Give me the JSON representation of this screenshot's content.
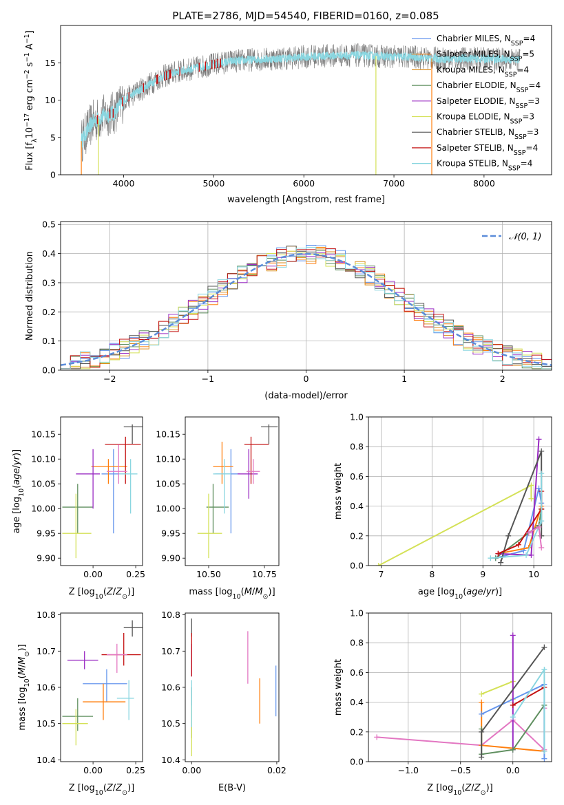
{
  "title": "PLATE=2786, MJD=54540, FIBERID=0160, z=0.085",
  "colors": {
    "Chabrier MILES": "#6495ed",
    "Salpeter MILES": "#ff7f0e",
    "Kroupa MILES": "#d98a1a",
    "Chabrier ELODIE": "#5f8f5f",
    "Salpeter ELODIE": "#9a2bc3",
    "Kroupa ELODIE": "#d4e157",
    "Chabrier STELIB": "#555555",
    "Salpeter STELIB": "#c41010",
    "Kroupa STELIB": "#8ad6e0",
    "extra": "#e377c2",
    "data": "#7f7f7f",
    "normal": "#5b8cd9"
  },
  "chart_data": [
    {
      "id": "spectrum",
      "type": "line",
      "title": "PLATE=2786, MJD=54540, FIBERID=0160, z=0.085",
      "xlabel": "wavelength [Angstrom, rest frame]",
      "ylabel": "Flux [f_λ10^-17 erg cm^-2 s^-1 A^-1]",
      "xlim": [
        3300,
        8750
      ],
      "ylim": [
        0,
        20
      ],
      "xticks": [
        4000,
        5000,
        6000,
        7000,
        8000
      ],
      "yticks": [
        0,
        5,
        10,
        15
      ],
      "grid": false,
      "legend_position": "top-right",
      "series": [
        {
          "name": "Chabrier MILES",
          "nssp": "4"
        },
        {
          "name": "Salpeter MILES",
          "nssp": "5"
        },
        {
          "name": "Kroupa MILES",
          "nssp": "4"
        },
        {
          "name": "Chabrier ELODIE",
          "nssp": "4"
        },
        {
          "name": "Salpeter ELODIE",
          "nssp": "3"
        },
        {
          "name": "Kroupa ELODIE",
          "nssp": "3"
        },
        {
          "name": "Chabrier STELIB",
          "nssp": "3"
        },
        {
          "name": "Salpeter STELIB",
          "nssp": "4"
        },
        {
          "name": "Kroupa STELIB",
          "nssp": "4"
        }
      ],
      "continuum": {
        "x": [
          3530,
          3650,
          3800,
          3900,
          4000,
          4200,
          4400,
          4600,
          4800,
          5000,
          5200,
          5400,
          5600,
          5800,
          6000,
          6200,
          6400,
          6600,
          6800,
          7000,
          7200,
          7400,
          7600,
          7800,
          8000,
          8200,
          8400
        ],
        "y": [
          4.5,
          7.0,
          8.0,
          8.3,
          10.0,
          11.5,
          13.0,
          13.8,
          14.3,
          14.8,
          15.2,
          15.4,
          15.5,
          15.6,
          15.8,
          15.9,
          16.0,
          16.0,
          15.9,
          15.8,
          15.8,
          15.6,
          15.5,
          15.6,
          15.5,
          15.5,
          15.4
        ]
      }
    },
    {
      "id": "residuals",
      "type": "bar",
      "xlabel": "(data-model)/error",
      "ylabel": "Normed distribution",
      "xlim": [
        -2.5,
        2.5
      ],
      "ylim": [
        0,
        0.51
      ],
      "xticks": [
        -2,
        -1,
        0,
        1,
        2
      ],
      "yticks": [
        0.0,
        0.1,
        0.2,
        0.3,
        0.4,
        0.5
      ],
      "grid": true,
      "legend": [
        "𝒩(0, 1)"
      ],
      "legend_position": "top-right",
      "bin_width": 0.1
    },
    {
      "id": "age-vs-Z",
      "type": "scatter",
      "xlabel": "Z [log10(Z/Z☉)]",
      "ylabel": "age  [log10(age/yr)]",
      "xlim": [
        -0.19,
        0.29
      ],
      "ylim": [
        9.885,
        10.185
      ],
      "xticks": [
        0.0,
        0.25
      ],
      "yticks": [
        9.9,
        9.95,
        10.0,
        10.05,
        10.1,
        10.15
      ],
      "points": [
        {
          "s": "Chabrier MILES",
          "x": 0.12,
          "y": 10.07,
          "xl": 0.05,
          "xh": 0.2,
          "yl": 9.95,
          "yh": 10.12
        },
        {
          "s": "Salpeter MILES",
          "x": 0.09,
          "y": 10.085,
          "xl": -0.01,
          "xh": 0.2,
          "yl": 10.05,
          "yh": 10.1
        },
        {
          "s": "Chabrier ELODIE",
          "x": -0.09,
          "y": 10.003,
          "xl": -0.18,
          "xh": 0.0,
          "yl": 9.95,
          "yh": 10.05
        },
        {
          "s": "Salpeter ELODIE",
          "x": 0.0,
          "y": 10.07,
          "xl": -0.1,
          "xh": 0.04,
          "yl": 10.0,
          "yh": 10.12
        },
        {
          "s": "Kroupa ELODIE",
          "x": -0.1,
          "y": 9.95,
          "xl": -0.18,
          "xh": -0.01,
          "yl": 9.9,
          "yh": 10.03
        },
        {
          "s": "Chabrier STELIB",
          "x": 0.23,
          "y": 10.165,
          "xl": 0.18,
          "xh": 0.29,
          "yl": 10.13,
          "yh": 10.17
        },
        {
          "s": "Salpeter STELIB",
          "x": 0.19,
          "y": 10.13,
          "xl": 0.07,
          "xh": 0.28,
          "yl": 10.05,
          "yh": 10.145
        },
        {
          "s": "Kroupa STELIB",
          "x": 0.22,
          "y": 10.07,
          "xl": 0.15,
          "xh": 0.26,
          "yl": 9.99,
          "yh": 10.1
        },
        {
          "s": "extra",
          "x": 0.15,
          "y": 10.075,
          "xl": 0.08,
          "xh": 0.2,
          "yl": 10.05,
          "yh": 10.13
        }
      ]
    },
    {
      "id": "age-vs-mass",
      "type": "scatter",
      "xlabel": "mass [log10(M/M☉)]",
      "ylabel": "",
      "xlim": [
        10.395,
        10.815
      ],
      "ylim": [
        9.885,
        10.185
      ],
      "xticks": [
        10.5,
        10.75
      ],
      "yticks": [
        9.9,
        9.95,
        10.0,
        10.05,
        10.1,
        10.15
      ],
      "points": [
        {
          "s": "Chabrier MILES",
          "x": 10.6,
          "y": 10.07,
          "xl": 10.53,
          "xh": 10.64,
          "yl": 9.95,
          "yh": 10.12
        },
        {
          "s": "Salpeter MILES",
          "x": 10.56,
          "y": 10.085,
          "xl": 10.52,
          "xh": 10.61,
          "yl": 10.05,
          "yh": 10.135
        },
        {
          "s": "Chabrier ELODIE",
          "x": 10.52,
          "y": 10.003,
          "xl": 10.49,
          "xh": 10.59,
          "yl": 9.95,
          "yh": 10.05
        },
        {
          "s": "Salpeter ELODIE",
          "x": 10.68,
          "y": 10.07,
          "xl": 10.63,
          "xh": 10.72,
          "yl": 10.02,
          "yh": 10.12
        },
        {
          "s": "Kroupa ELODIE",
          "x": 10.5,
          "y": 9.95,
          "xl": 10.45,
          "xh": 10.56,
          "yl": 9.9,
          "yh": 10.03
        },
        {
          "s": "Chabrier STELIB",
          "x": 10.77,
          "y": 10.165,
          "xl": 10.735,
          "xh": 10.81,
          "yl": 10.13,
          "yh": 10.17
        },
        {
          "s": "Salpeter STELIB",
          "x": 10.69,
          "y": 10.13,
          "xl": 10.66,
          "xh": 10.77,
          "yl": 10.05,
          "yh": 10.145
        },
        {
          "s": "Kroupa STELIB",
          "x": 10.57,
          "y": 10.07,
          "xl": 10.52,
          "xh": 10.6,
          "yl": 9.99,
          "yh": 10.1
        },
        {
          "s": "extra",
          "x": 10.7,
          "y": 10.075,
          "xl": 10.67,
          "xh": 10.73,
          "yl": 10.05,
          "yh": 10.1
        }
      ]
    },
    {
      "id": "weight-vs-age",
      "type": "line",
      "xlabel": "age  [log10(age/yr)]",
      "ylabel": "mass weight",
      "xlim": [
        6.75,
        10.35
      ],
      "ylim": [
        0,
        1.0
      ],
      "xticks": [
        7,
        8,
        9,
        10
      ],
      "yticks": [
        0.0,
        0.2,
        0.4,
        0.6,
        0.8,
        1.0
      ],
      "grid": true,
      "series": [
        {
          "name": "Kroupa ELODIE",
          "x": [
            6.95,
            9.95,
            9.95
          ],
          "y": [
            0.0,
            0.54,
            0.45
          ]
        },
        {
          "name": "Chabrier MILES",
          "x": [
            9.25,
            9.8,
            10.1,
            10.15
          ],
          "y": [
            0.05,
            0.1,
            0.52,
            0.42
          ]
        },
        {
          "name": "Salpeter MILES",
          "x": [
            9.3,
            9.9,
            10.15
          ],
          "y": [
            0.08,
            0.12,
            0.4
          ]
        },
        {
          "name": "Chabrier ELODIE",
          "x": [
            9.25,
            9.9,
            10.1,
            10.15
          ],
          "y": [
            0.05,
            0.22,
            0.27,
            0.38
          ]
        },
        {
          "name": "Salpeter ELODIE",
          "x": [
            9.3,
            9.95,
            10.1
          ],
          "y": [
            0.08,
            0.07,
            0.85
          ]
        },
        {
          "name": "Chabrier STELIB",
          "x": [
            9.35,
            9.5,
            10.15,
            10.15
          ],
          "y": [
            0.02,
            0.2,
            0.77,
            0.2
          ]
        },
        {
          "name": "Salpeter STELIB",
          "x": [
            9.3,
            9.7,
            10.15,
            10.15
          ],
          "y": [
            0.08,
            0.14,
            0.38,
            0.5
          ]
        },
        {
          "name": "Kroupa STELIB",
          "x": [
            9.15,
            9.85,
            10.15,
            10.15
          ],
          "y": [
            0.05,
            0.07,
            0.3,
            0.62
          ]
        },
        {
          "name": "extra",
          "x": [
            9.9,
            10.1,
            10.15
          ],
          "y": [
            0.22,
            0.26,
            0.12
          ]
        }
      ]
    },
    {
      "id": "mass-vs-Z",
      "type": "scatter",
      "xlabel": "Z [log10(Z/Z☉)]",
      "ylabel": "mass [log10(M/M☉)]",
      "xlim": [
        -0.19,
        0.29
      ],
      "ylim": [
        10.395,
        10.805
      ],
      "xticks": [
        0.0,
        0.25
      ],
      "yticks": [
        10.4,
        10.5,
        10.6,
        10.7,
        10.8
      ],
      "points": [
        {
          "s": "Chabrier MILES",
          "x": 0.08,
          "y": 10.61,
          "xl": -0.06,
          "xh": 0.2,
          "yl": 10.56,
          "yh": 10.65
        },
        {
          "s": "Salpeter MILES",
          "x": 0.06,
          "y": 10.56,
          "xl": -0.06,
          "xh": 0.19,
          "yl": 10.51,
          "yh": 10.61
        },
        {
          "s": "Chabrier ELODIE",
          "x": -0.09,
          "y": 10.52,
          "xl": -0.18,
          "xh": 0.0,
          "yl": 10.48,
          "yh": 10.57
        },
        {
          "s": "Salpeter ELODIE",
          "x": -0.05,
          "y": 10.675,
          "xl": -0.15,
          "xh": 0.03,
          "yl": 10.65,
          "yh": 10.7
        },
        {
          "s": "Kroupa ELODIE",
          "x": -0.1,
          "y": 10.5,
          "xl": -0.18,
          "xh": -0.03,
          "yl": 10.44,
          "yh": 10.54
        },
        {
          "s": "Chabrier STELIB",
          "x": 0.23,
          "y": 10.765,
          "xl": 0.18,
          "xh": 0.29,
          "yl": 10.74,
          "yh": 10.785
        },
        {
          "s": "Salpeter STELIB",
          "x": 0.18,
          "y": 10.69,
          "xl": 0.05,
          "xh": 0.28,
          "yl": 10.66,
          "yh": 10.75
        },
        {
          "s": "Kroupa STELIB",
          "x": 0.21,
          "y": 10.57,
          "xl": 0.14,
          "xh": 0.24,
          "yl": 10.51,
          "yh": 10.62
        },
        {
          "s": "extra",
          "x": 0.14,
          "y": 10.69,
          "xl": 0.08,
          "xh": 0.2,
          "yl": 10.64,
          "yh": 10.72
        }
      ]
    },
    {
      "id": "mass-vs-ebv",
      "type": "scatter",
      "xlabel": "E(B-V)",
      "ylabel": "",
      "xlim": [
        -0.0015,
        0.0205
      ],
      "ylim": [
        10.395,
        10.805
      ],
      "xticks": [
        0.0,
        0.02
      ],
      "yticks": [
        10.4,
        10.5,
        10.6,
        10.7,
        10.8
      ],
      "points": [
        {
          "s": "Chabrier MILES",
          "x": 0.0198,
          "y": 10.6,
          "yl": 10.52,
          "yh": 10.66
        },
        {
          "s": "Salpeter MILES",
          "x": 0.016,
          "y": 10.56,
          "yl": 10.5,
          "yh": 10.625
        },
        {
          "s": "Chabrier ELODIE",
          "x": 0.0,
          "y": 10.52,
          "yl": 10.46,
          "yh": 10.6
        },
        {
          "s": "Salpeter ELODIE",
          "x": 0.0,
          "y": 10.675,
          "yl": 10.63,
          "yh": 10.72
        },
        {
          "s": "Kroupa ELODIE",
          "x": 0.0,
          "y": 10.5,
          "yl": 10.41,
          "yh": 10.55
        },
        {
          "s": "Chabrier STELIB",
          "x": 0.0,
          "y": 10.765,
          "yl": 10.74,
          "yh": 10.79
        },
        {
          "s": "Salpeter STELIB",
          "x": 0.0,
          "y": 10.69,
          "yl": 10.63,
          "yh": 10.75
        },
        {
          "s": "Kroupa STELIB",
          "x": 0.0,
          "y": 10.56,
          "yl": 10.49,
          "yh": 10.62
        },
        {
          "s": "extra",
          "x": 0.0132,
          "y": 10.68,
          "yl": 10.61,
          "yh": 10.755
        }
      ]
    },
    {
      "id": "weight-vs-Z",
      "type": "line",
      "xlabel": "Z [log10(Z/Z☉)]",
      "ylabel": "mass weight",
      "xlim": [
        -1.38,
        0.37
      ],
      "ylim": [
        0,
        1.0
      ],
      "xticks": [
        -1.0,
        -0.5,
        0.0
      ],
      "yticks": [
        0.0,
        0.2,
        0.4,
        0.6,
        0.8,
        1.0
      ],
      "grid": true,
      "series": [
        {
          "name": "extra",
          "x": [
            -1.3,
            -0.3,
            0.0,
            0.3,
            0.3
          ],
          "y": [
            0.165,
            0.11,
            0.28,
            0.08,
            0.36
          ]
        },
        {
          "name": "Salpeter MILES",
          "x": [
            -0.3,
            -0.3,
            0.3
          ],
          "y": [
            0.4,
            0.11,
            0.07
          ]
        },
        {
          "name": "Kroupa ELODIE",
          "x": [
            -0.3,
            0.0,
            0.0
          ],
          "y": [
            0.455,
            0.54,
            0.42
          ]
        },
        {
          "name": "Chabrier MILES",
          "x": [
            -0.3,
            0.3,
            0.3
          ],
          "y": [
            0.32,
            0.52,
            0.02
          ]
        },
        {
          "name": "Salpeter ELODIE",
          "x": [
            0.0,
            0.0
          ],
          "y": [
            0.85,
            0.08
          ]
        },
        {
          "name": "Chabrier ELODIE",
          "x": [
            -0.3,
            -0.3,
            0.0,
            0.3
          ],
          "y": [
            0.22,
            0.05,
            0.08,
            0.38
          ]
        },
        {
          "name": "Chabrier STELIB",
          "x": [
            -0.3,
            -0.3,
            0.3
          ],
          "y": [
            0.03,
            0.2,
            0.77
          ]
        },
        {
          "name": "Salpeter STELIB",
          "x": [
            0.0,
            0.3
          ],
          "y": [
            0.38,
            0.5
          ]
        },
        {
          "name": "Kroupa STELIB",
          "x": [
            0.0,
            0.3,
            0.3
          ],
          "y": [
            0.3,
            0.62,
            0.07
          ]
        }
      ]
    }
  ]
}
